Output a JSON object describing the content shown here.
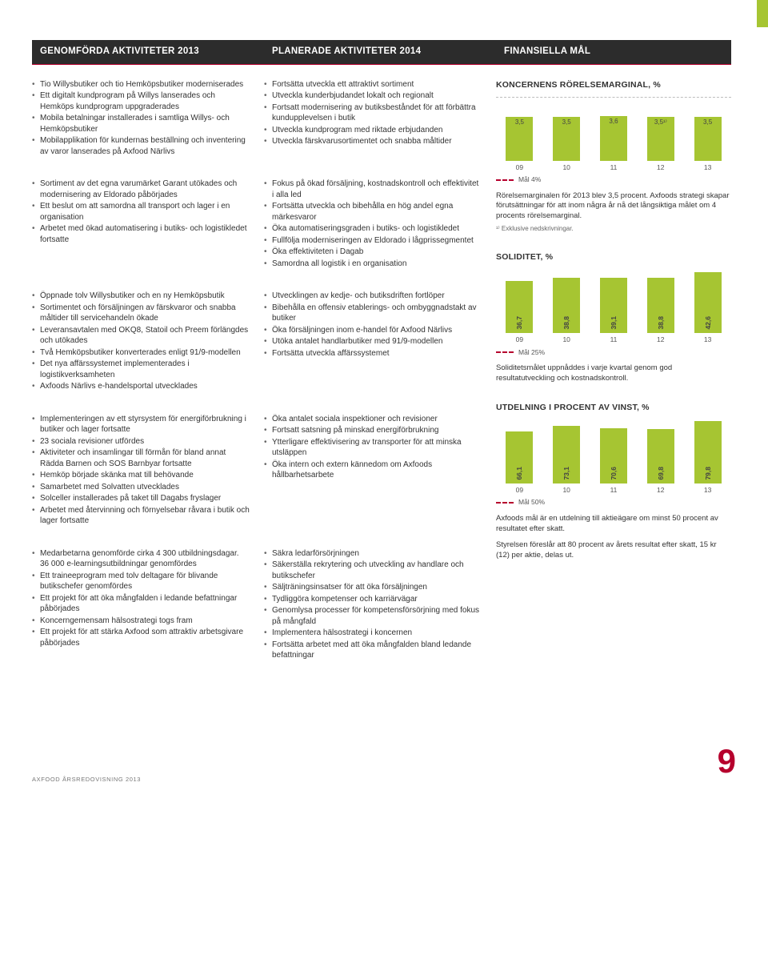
{
  "colors": {
    "accent_green": "#a6c532",
    "accent_red": "#b6002d",
    "header_dark": "#2c2c2c",
    "text": "#333333",
    "grid": "#bdbdbd"
  },
  "headers": {
    "col1": "GENOMFÖRDA AKTIVITETER 2013",
    "col2": "PLANERADE AKTIVITETER 2014",
    "col3": "FINANSIELLA MÅL"
  },
  "rows": [
    {
      "left": [
        "Tio Willysbutiker och tio Hemköpsbutiker moderniserades",
        "Ett digitalt kundprogram på Willys lanserades och Hemköps kundprogram uppgraderades",
        "Mobila betalningar installerades i samtliga Willys- och Hemköpsbutiker",
        "Mobilapplikation för kundernas beställning och inventering av varor lanserades på Axfood Närlivs"
      ],
      "mid": [
        "Fortsätta utveckla ett attraktivt sortiment",
        "Utveckla kunderbjudandet lokalt och regionalt",
        "Fortsatt modernisering av butiksbeståndet för att förbättra kundupplevelsen i butik",
        "Utveckla kundprogram med riktade erbjudanden",
        "Utveckla färskvarusortimentet och snabba måltider"
      ]
    },
    {
      "left": [
        "Sortiment av det egna varumärket Garant utökades och modernisering av Eldorado påbörjades",
        "Ett beslut om att samordna all transport och lager i en organisation",
        "Arbetet med ökad automatisering i butiks- och logistikledet fortsatte"
      ],
      "mid": [
        "Fokus på ökad försäljning, kostnadskontroll och effektivitet i alla led",
        "Fortsätta utveckla och bibehålla en hög andel egna märkesvaror",
        "Öka automatiseringsgraden i butiks- och logistikledet",
        "Fullfölja moderniseringen av Eldorado i lågprissegmentet",
        "Öka effektiviteten i Dagab",
        "Samordna all logistik i en organisation"
      ]
    },
    {
      "left": [
        "Öppnade tolv Willysbutiker och en ny Hemköpsbutik",
        "Sortimentet och försäljningen av färskvaror och snabba måltider till servicehandeln ökade",
        "Leveransavtalen med OKQ8, Statoil och Preem förlängdes och utökades",
        "Två Hemköpsbutiker konverterades enligt 91/9-modellen",
        "Det nya affärssystemet implementerades i logistikverksamheten",
        "Axfoods Närlivs e-handelsportal utvecklades"
      ],
      "mid": [
        "Utvecklingen av kedje- och butiksdriften fortlöper",
        "Bibehålla en offensiv etablerings- och ombyggnadstakt av butiker",
        "Öka försäljningen inom e-handel för Axfood Närlivs",
        "Utöka antalet handlarbutiker med 91/9-modellen",
        "Fortsätta utveckla affärssystemet"
      ]
    },
    {
      "left": [
        "Implementeringen av ett styrsystem för energiförbrukning i butiker och lager fortsatte",
        "23 sociala revisioner utfördes",
        "Aktiviteter och insamlingar till förmån för bland annat Rädda Barnen och SOS Barnbyar fortsatte",
        "Hemköp började skänka mat till behövande",
        "Samarbetet med Solvatten utvecklades",
        "Solceller installerades på taket till Dagabs fryslager",
        "Arbetet med återvinning och förnyelsebar råvara i butik och lager fortsatte"
      ],
      "mid": [
        "Öka antalet sociala inspektioner och revisioner",
        "Fortsatt satsning på minskad energiförbrukning",
        "Ytterligare effektivisering av transporter för att minska utsläppen",
        "Öka intern och extern kännedom om Axfoods hållbarhetsarbete"
      ]
    },
    {
      "left": [
        "Medarbetarna genomförde cirka 4 300 utbildningsdagar. 36 000 e-learningsutbildningar genomfördes",
        "Ett traineeprogram med tolv deltagare för blivande butikschefer genomfördes",
        "Ett projekt för att öka mångfalden i ledande befattningar påbörjades",
        "Koncerngemensam hälsostrategi togs fram",
        "Ett projekt för att stärka Axfood som attraktiv arbetsgivare påbörjades"
      ],
      "mid": [
        "Säkra ledarförsörjningen",
        "Säkerställa rekrytering och utveckling av handlare och butikschefer",
        "Säljträningsinsatser för att öka försäljningen",
        "Tydliggöra kompetenser och karriärvägar",
        "Genomlysa processer för kompetensförsörjning med fokus på mångfald",
        "Implementera hälsostrategi i koncernen",
        "Fortsätta arbetet med att öka mångfalden bland ledande befattningar"
      ]
    }
  ],
  "charts": {
    "margin": {
      "title": "KONCERNENS RÖRELSEMARGINAL, %",
      "categories": [
        "09",
        "10",
        "11",
        "12",
        "13"
      ],
      "labels": [
        "3,5",
        "3,5",
        "3,6",
        "3,5¹⁾",
        "3,5"
      ],
      "values": [
        3.5,
        3.5,
        3.6,
        3.5,
        3.5
      ],
      "ymax": 4.0,
      "bar_color": "#a6c532",
      "goal_label": "Mål 4%",
      "note": "Rörelsemarginalen för 2013 blev 3,5 procent. Axfoods strategi skapar förutsättningar för att inom några år nå det långsiktiga målet om 4 procents rörelsemarginal.",
      "footnote": "¹⁾ Exklusive nedskrivningar."
    },
    "solidity": {
      "title": "SOLIDITET, %",
      "categories": [
        "09",
        "10",
        "11",
        "12",
        "13"
      ],
      "labels": [
        "36,7",
        "38,8",
        "39,1",
        "38,8",
        "42,6"
      ],
      "values": [
        36.7,
        38.8,
        39.1,
        38.8,
        42.6
      ],
      "ymax": 45,
      "bar_color": "#a6c532",
      "goal_label": "Mål 25%",
      "note": "Soliditetsmålet uppnåddes i varje kvartal genom god resultatutveckling och kostnadskontroll."
    },
    "dividend": {
      "title": "UTDELNING I PROCENT AV VINST, %",
      "categories": [
        "09",
        "10",
        "11",
        "12",
        "13"
      ],
      "labels": [
        "66,1",
        "73,1",
        "70,6",
        "69,8",
        "79,8"
      ],
      "values": [
        66.1,
        73.1,
        70.6,
        69.8,
        79.8
      ],
      "ymax": 82,
      "bar_color": "#a6c532",
      "goal_label": "Mål 50%",
      "note": "Axfoods mål är en utdelning till aktieägare om minst 50 procent av resultatet efter skatt.",
      "note2": "Styrelsen föreslår att 80 procent av årets resultat efter skatt, 15 kr (12) per aktie, delas ut."
    }
  },
  "footer": {
    "left": "AXFOOD ÅRSREDOVISNING 2013",
    "page": "9"
  }
}
